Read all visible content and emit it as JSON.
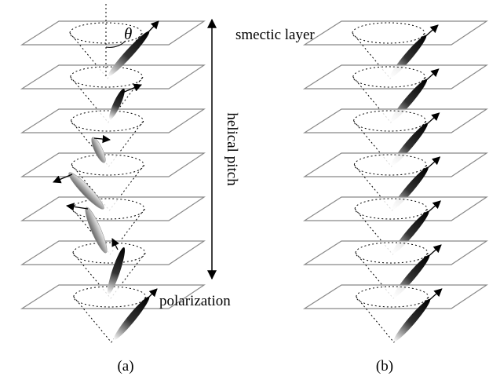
{
  "labels": {
    "smectic_layer": "smectic layer",
    "helical_pitch": "helical pitch",
    "polarization": "polarization",
    "theta": "θ",
    "panel_a": "(a)",
    "panel_b": "(b)"
  }
}
